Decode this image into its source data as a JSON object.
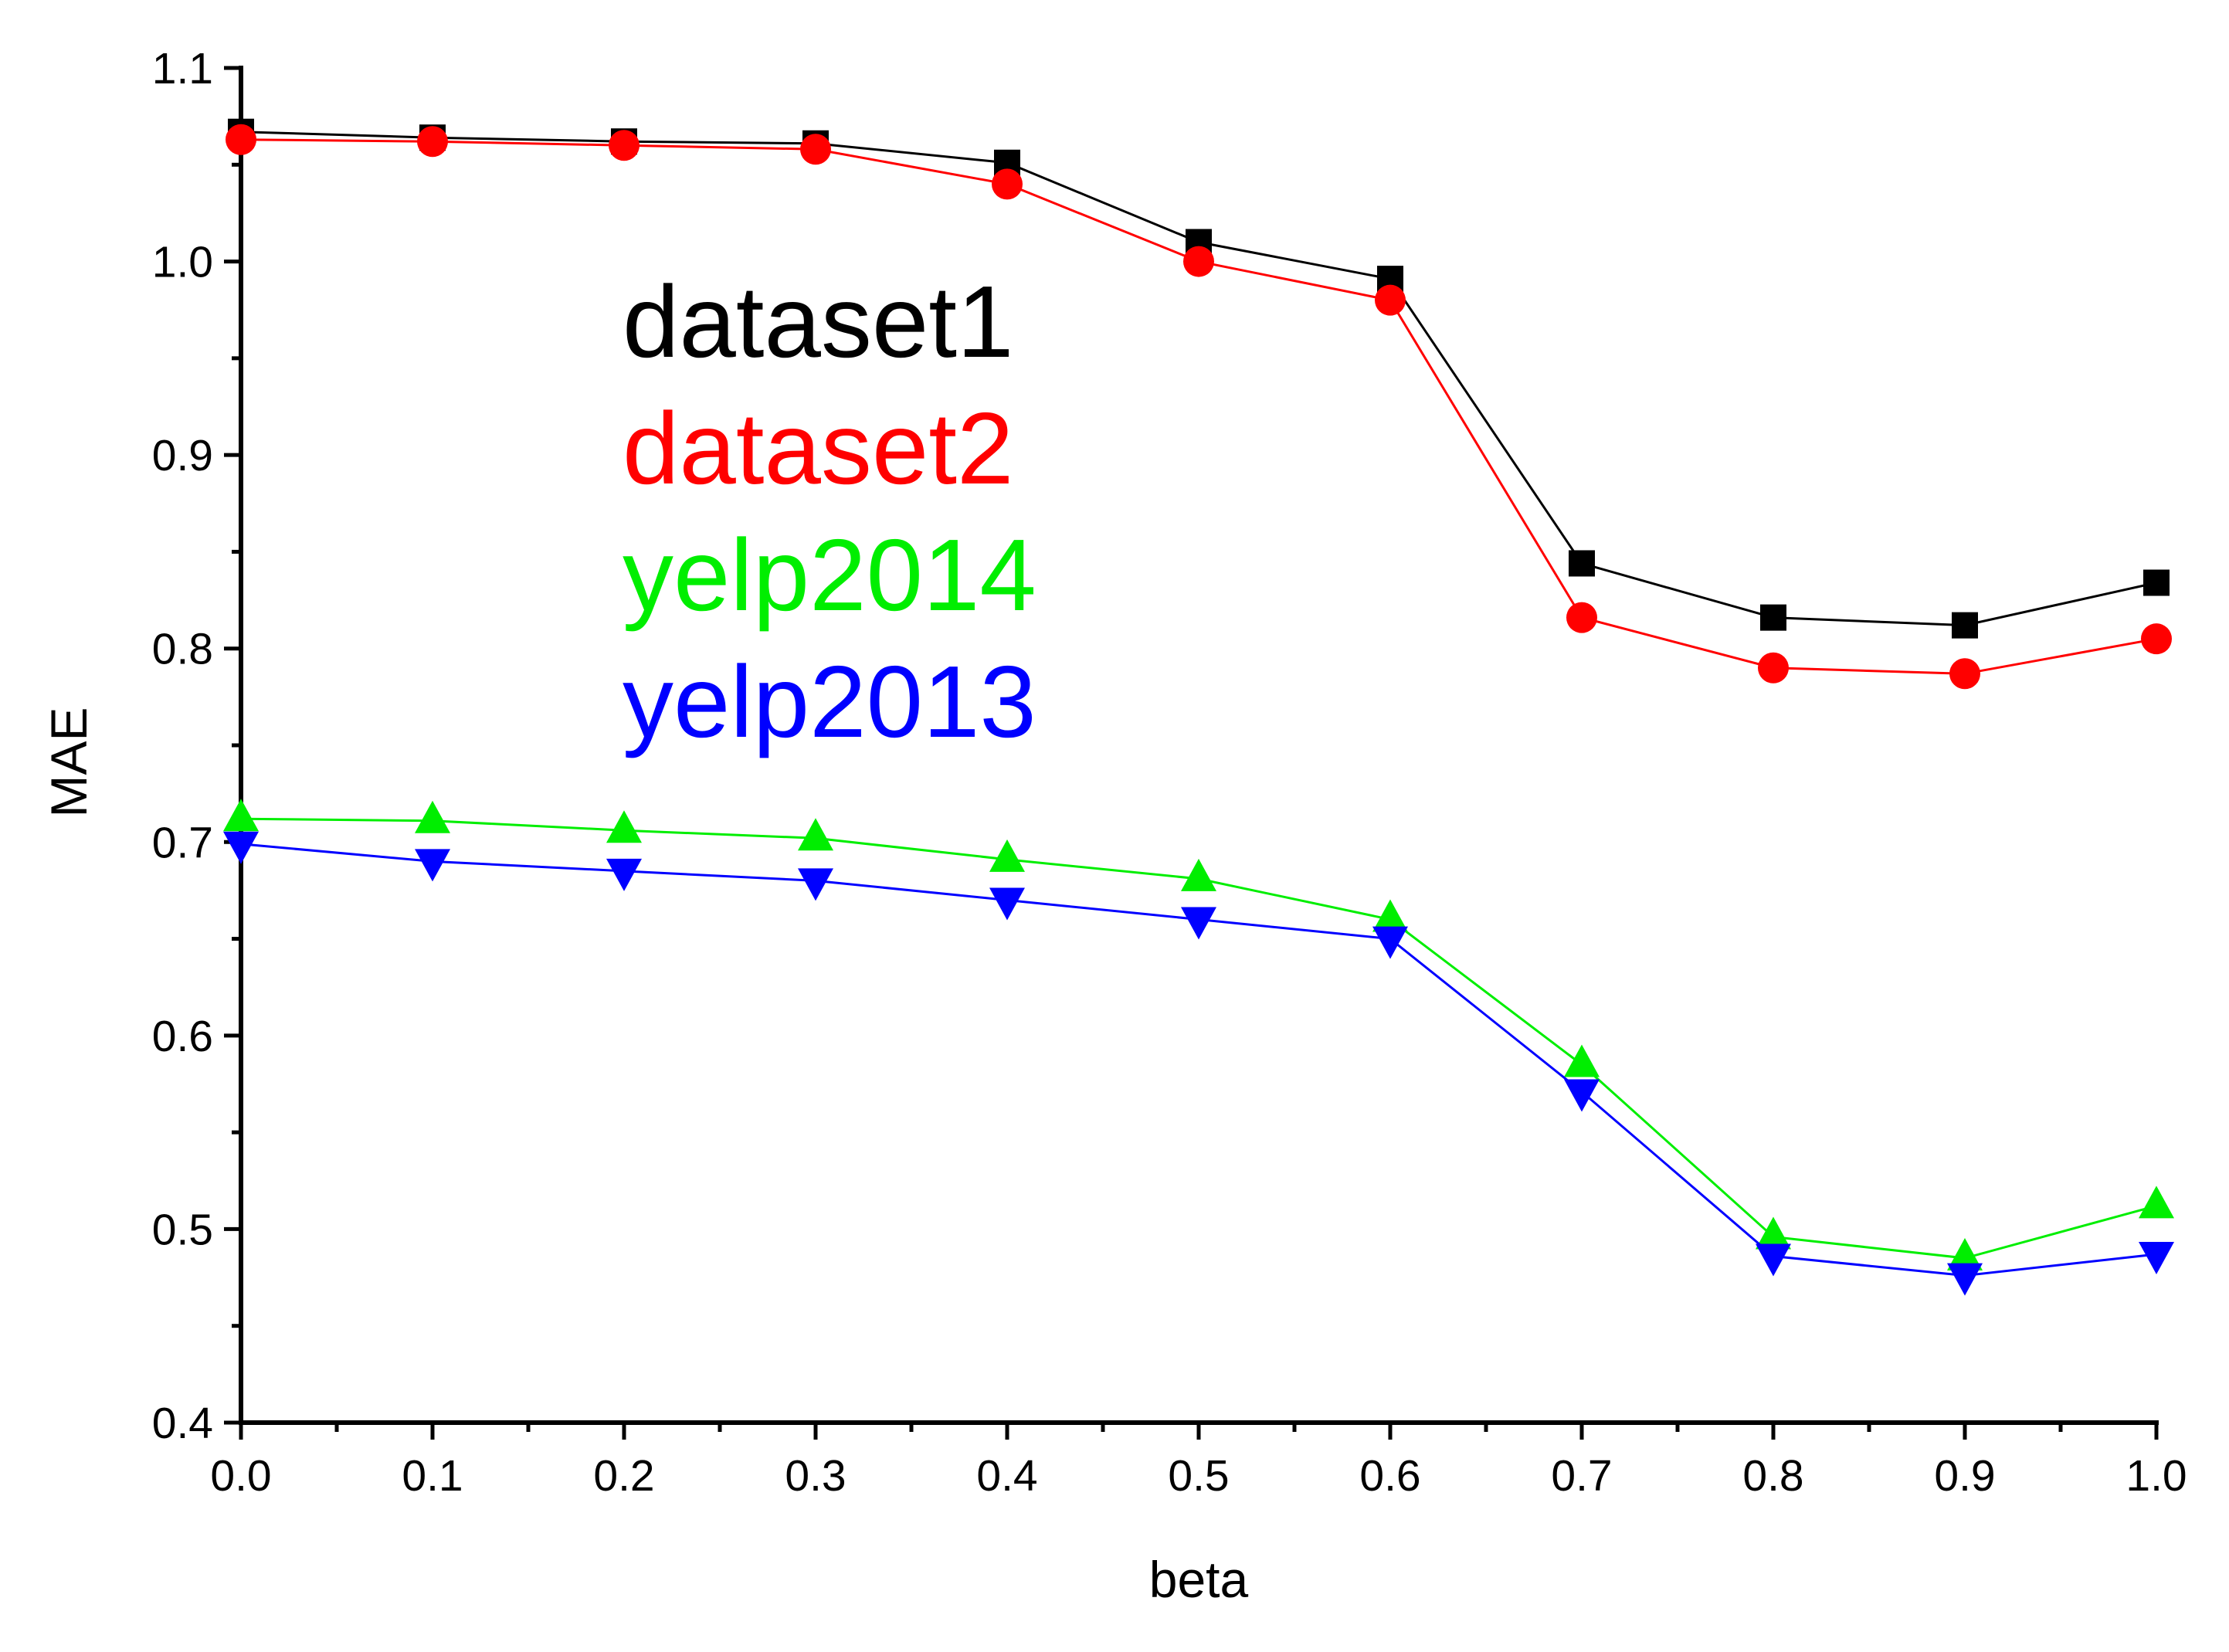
{
  "chart_data": {
    "type": "line",
    "title": "",
    "xlabel": "beta",
    "ylabel": "MAE",
    "xlim": [
      0.0,
      1.0
    ],
    "ylim": [
      0.4,
      1.1
    ],
    "xticks": [
      "0.0",
      "0.1",
      "0.2",
      "0.3",
      "0.4",
      "0.5",
      "0.6",
      "0.7",
      "0.8",
      "0.9",
      "1.0"
    ],
    "yticks": [
      "0.4",
      "0.5",
      "0.6",
      "0.7",
      "0.8",
      "0.9",
      "1.0",
      "1.1"
    ],
    "x": [
      0.0,
      0.1,
      0.2,
      0.3,
      0.4,
      0.5,
      0.6,
      0.7,
      0.8,
      0.9,
      1.0
    ],
    "grid": false,
    "legend_position": "upper-center",
    "series": [
      {
        "name": "dataset1",
        "color": "#000000",
        "marker": "square",
        "values": [
          1.067,
          1.064,
          1.062,
          1.061,
          1.051,
          1.01,
          0.991,
          0.844,
          0.816,
          0.812,
          0.834
        ]
      },
      {
        "name": "dataset2",
        "color": "#ff0000",
        "marker": "circle",
        "values": [
          1.063,
          1.062,
          1.06,
          1.058,
          1.04,
          1.0,
          0.98,
          0.816,
          0.79,
          0.787,
          0.805
        ]
      },
      {
        "name": "yelp2014",
        "color": "#00ee00",
        "marker": "triangle-up",
        "values": [
          0.712,
          0.711,
          0.706,
          0.702,
          0.691,
          0.681,
          0.66,
          0.585,
          0.496,
          0.485,
          0.512
        ]
      },
      {
        "name": "yelp2013",
        "color": "#0000ff",
        "marker": "triangle-down",
        "values": [
          0.699,
          0.69,
          0.685,
          0.68,
          0.67,
          0.66,
          0.65,
          0.571,
          0.486,
          0.476,
          0.487
        ]
      }
    ]
  }
}
